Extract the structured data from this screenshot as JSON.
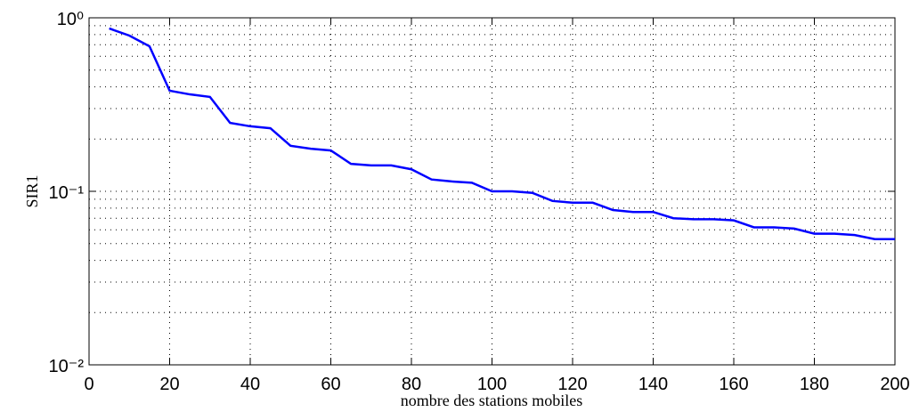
{
  "chart_data": {
    "type": "line",
    "xlabel": "nombre des stations mobiles",
    "ylabel": "SIR1",
    "x": [
      5,
      10,
      15,
      20,
      25,
      30,
      35,
      40,
      45,
      50,
      55,
      60,
      65,
      70,
      75,
      80,
      85,
      90,
      95,
      100,
      105,
      110,
      115,
      120,
      125,
      130,
      135,
      140,
      145,
      150,
      155,
      160,
      165,
      170,
      175,
      180,
      185,
      190,
      195,
      200
    ],
    "series": [
      {
        "name": "SIR1",
        "color": "#0000ff",
        "values": [
          0.868,
          0.79,
          0.685,
          0.38,
          0.362,
          0.35,
          0.248,
          0.237,
          0.231,
          0.183,
          0.176,
          0.172,
          0.144,
          0.141,
          0.141,
          0.134,
          0.117,
          0.114,
          0.112,
          0.1,
          0.1,
          0.098,
          0.088,
          0.086,
          0.086,
          0.078,
          0.076,
          0.076,
          0.07,
          0.069,
          0.069,
          0.068,
          0.062,
          0.062,
          0.061,
          0.057,
          0.057,
          0.056,
          0.053,
          0.053
        ]
      }
    ],
    "xlim": [
      0,
      200
    ],
    "xticks": [
      0,
      20,
      40,
      60,
      80,
      100,
      120,
      140,
      160,
      180,
      200
    ],
    "ylim": [
      0.01,
      1
    ],
    "yticks": [
      {
        "value": 0.01,
        "label": "10⁻²"
      },
      {
        "value": 0.1,
        "label": "10⁻¹"
      },
      {
        "value": 1,
        "label": "10⁰"
      }
    ],
    "ylog": true,
    "grid": true,
    "minor_grid": true
  }
}
